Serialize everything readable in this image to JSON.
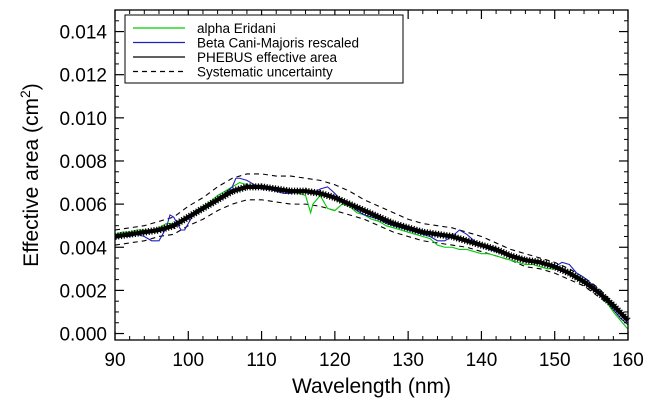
{
  "chart_data": {
    "type": "line",
    "title": "",
    "xlabel": "Wavelength (nm)",
    "ylabel_main": "Effective area (cm",
    "ylabel_sup": "2",
    "ylabel_tail": ")",
    "xlim": [
      90,
      160
    ],
    "ylim": [
      -0.0003,
      0.015
    ],
    "xticks": [
      90,
      100,
      110,
      120,
      130,
      140,
      150,
      160
    ],
    "yticks": [
      0.0,
      0.002,
      0.004,
      0.006,
      0.008,
      0.01,
      0.012,
      0.014
    ],
    "xtick_labels": [
      "90",
      "100",
      "110",
      "120",
      "130",
      "140",
      "150",
      "160"
    ],
    "ytick_labels": [
      "0.000",
      "0.002",
      "0.004",
      "0.006",
      "0.008",
      "0.010",
      "0.012",
      "0.014"
    ],
    "grid": false,
    "legend_position": "top-left",
    "series": [
      {
        "name": "alpha Eridani",
        "color": "#00cc00",
        "style": "solid",
        "x": [
          90,
          91,
          92,
          93,
          94,
          95,
          96,
          97,
          98,
          99,
          100,
          101,
          102,
          103,
          104,
          105,
          106,
          107,
          108,
          109,
          110,
          111,
          112,
          113,
          114,
          115,
          116,
          116.7,
          117,
          118,
          119,
          120,
          121,
          122,
          123,
          124,
          125,
          126,
          127,
          128,
          129,
          130,
          131,
          132,
          133,
          134,
          135,
          136,
          137,
          138,
          139,
          140,
          141,
          142,
          143,
          144,
          145,
          146,
          147,
          148,
          149,
          150,
          151,
          152,
          153,
          154,
          155,
          156,
          157,
          158,
          159,
          160
        ],
        "y": [
          0.0046,
          0.0047,
          0.0047,
          0.0048,
          0.0048,
          0.0048,
          0.0049,
          0.0051,
          0.0051,
          0.0051,
          0.0054,
          0.0057,
          0.0059,
          0.0061,
          0.0064,
          0.0066,
          0.0068,
          0.007,
          0.0069,
          0.0068,
          0.0068,
          0.0067,
          0.0066,
          0.0066,
          0.0066,
          0.0065,
          0.0064,
          0.0056,
          0.006,
          0.0064,
          0.0058,
          0.0057,
          0.006,
          0.0059,
          0.0056,
          0.0055,
          0.0053,
          0.0052,
          0.005,
          0.0049,
          0.0048,
          0.0047,
          0.0046,
          0.0045,
          0.0044,
          0.0041,
          0.004,
          0.004,
          0.0039,
          0.0039,
          0.0038,
          0.0037,
          0.0037,
          0.0036,
          0.0035,
          0.0034,
          0.0033,
          0.0032,
          0.0032,
          0.0031,
          0.003,
          0.003,
          0.0029,
          0.0028,
          0.0027,
          0.0025,
          0.0022,
          0.0019,
          0.0015,
          0.001,
          0.0006,
          0.0002
        ]
      },
      {
        "name": "Beta Cani-Majoris rescaled",
        "color": "#2020c0",
        "style": "solid",
        "x": [
          90,
          91,
          92,
          93,
          94,
          95,
          96,
          97,
          97.5,
          98,
          99,
          99.5,
          100,
          101,
          102,
          103,
          104,
          105,
          106,
          106.5,
          107,
          108,
          109,
          110,
          111,
          112,
          113,
          114,
          115,
          116,
          117,
          118,
          119,
          120,
          121,
          122,
          123,
          124,
          125,
          126,
          127,
          128,
          129,
          130,
          131,
          132,
          133,
          134,
          135,
          136,
          137,
          138,
          139,
          140,
          141,
          142,
          143,
          144,
          145,
          146,
          147,
          148,
          149,
          150,
          151,
          152,
          153,
          154,
          155,
          156,
          157,
          158,
          159,
          160
        ],
        "y": [
          0.0044,
          0.0045,
          0.0045,
          0.0046,
          0.0045,
          0.0043,
          0.0043,
          0.0049,
          0.0055,
          0.0054,
          0.0048,
          0.0048,
          0.0051,
          0.0057,
          0.0058,
          0.006,
          0.0063,
          0.0065,
          0.0068,
          0.0072,
          0.0072,
          0.0071,
          0.0069,
          0.0067,
          0.0067,
          0.0066,
          0.0065,
          0.0065,
          0.0066,
          0.0066,
          0.0065,
          0.0067,
          0.0068,
          0.0065,
          0.0061,
          0.006,
          0.0057,
          0.0055,
          0.0054,
          0.0053,
          0.0051,
          0.005,
          0.0049,
          0.0048,
          0.0047,
          0.0046,
          0.0045,
          0.0043,
          0.0043,
          0.0045,
          0.0048,
          0.0046,
          0.0043,
          0.0041,
          0.0039,
          0.0038,
          0.0037,
          0.0036,
          0.0035,
          0.0034,
          0.0034,
          0.0033,
          0.0032,
          0.0031,
          0.0033,
          0.0032,
          0.0028,
          0.0026,
          0.0023,
          0.002,
          0.0016,
          0.0011,
          0.0007,
          0.0004
        ]
      },
      {
        "name": "PHEBUS effective area",
        "color": "#000000",
        "style": "solid",
        "x": [
          90,
          92,
          94,
          96,
          98,
          100,
          102,
          104,
          106,
          108,
          110,
          112,
          114,
          116,
          118,
          120,
          122,
          124,
          126,
          128,
          130,
          132,
          134,
          136,
          138,
          140,
          142,
          144,
          146,
          148,
          150,
          152,
          154,
          156,
          158,
          160
        ],
        "y": [
          0.0045,
          0.0046,
          0.0047,
          0.0048,
          0.005,
          0.0054,
          0.0058,
          0.0062,
          0.0066,
          0.0068,
          0.0068,
          0.0067,
          0.0066,
          0.0066,
          0.0065,
          0.0063,
          0.006,
          0.0057,
          0.0054,
          0.0051,
          0.0049,
          0.0047,
          0.0046,
          0.0045,
          0.0043,
          0.0041,
          0.0039,
          0.0036,
          0.0034,
          0.0033,
          0.0031,
          0.0028,
          0.0024,
          0.0019,
          0.0013,
          0.0006
        ]
      },
      {
        "name": "Systematic uncertainty",
        "color": "#000000",
        "style": "dashed",
        "upper_x": [
          90,
          92,
          94,
          96,
          98,
          100,
          102,
          104,
          106,
          108,
          110,
          112,
          114,
          116,
          118,
          120,
          122,
          124,
          126,
          128,
          130,
          132,
          134,
          136,
          138,
          140,
          142,
          144,
          146,
          148,
          150,
          152,
          154,
          156,
          158,
          160
        ],
        "upper_y": [
          0.0048,
          0.0049,
          0.005,
          0.0052,
          0.0054,
          0.0059,
          0.0063,
          0.0068,
          0.0072,
          0.0074,
          0.0074,
          0.0073,
          0.0073,
          0.0072,
          0.0071,
          0.0069,
          0.0066,
          0.0062,
          0.0059,
          0.0056,
          0.0053,
          0.0051,
          0.005,
          0.0049,
          0.0047,
          0.0045,
          0.0042,
          0.0039,
          0.0037,
          0.0035,
          0.0033,
          0.003,
          0.0026,
          0.0021,
          0.0014,
          0.0007
        ],
        "lower_x": [
          90,
          92,
          94,
          96,
          98,
          100,
          102,
          104,
          106,
          108,
          110,
          112,
          114,
          116,
          118,
          120,
          122,
          124,
          126,
          128,
          130,
          132,
          134,
          136,
          138,
          140,
          142,
          144,
          146,
          148,
          150,
          152,
          154,
          156,
          158,
          160
        ],
        "lower_y": [
          0.0041,
          0.0042,
          0.0043,
          0.0045,
          0.0046,
          0.005,
          0.0053,
          0.0057,
          0.006,
          0.0062,
          0.0062,
          0.0061,
          0.006,
          0.006,
          0.0059,
          0.0057,
          0.0055,
          0.0053,
          0.005,
          0.0047,
          0.0045,
          0.0043,
          0.0042,
          0.0041,
          0.004,
          0.0038,
          0.0036,
          0.0034,
          0.0031,
          0.003,
          0.0028,
          0.0025,
          0.0022,
          0.0017,
          0.0012,
          0.0005
        ]
      }
    ]
  }
}
